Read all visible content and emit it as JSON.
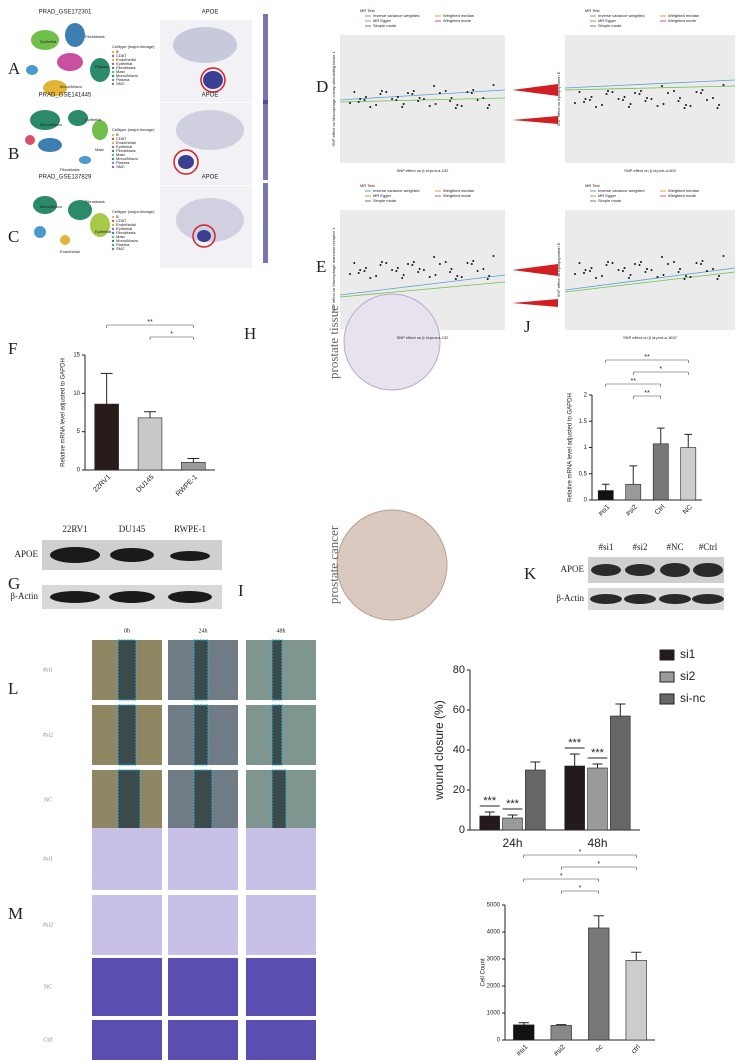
{
  "letters": [
    "A",
    "B",
    "C",
    "D",
    "E",
    "F",
    "G",
    "H",
    "I",
    "J",
    "K",
    "L",
    "M"
  ],
  "umap": {
    "rows": [
      {
        "title": "PRAD_GSE172301",
        "gene": "APOE",
        "clusters": [
          "Epithelial",
          "Fibroblasts",
          "Mono/Macro",
          "Plasma"
        ]
      },
      {
        "title": "PRAD_GSE141445",
        "gene": "APOE",
        "clusters": [
          "Mono/Macro",
          "Epithelial",
          "Fibroblasts",
          "Mast"
        ]
      },
      {
        "title": "PRAD_GSE137829",
        "gene": "APOE",
        "clusters": [
          "Mono/Macro",
          "Fibroblasts",
          "Endothelial",
          "Epithelial"
        ]
      }
    ],
    "legend_title": "Celltype (major-lineage)",
    "legend_items": [
      "B",
      "CD8T",
      "Endothelial",
      "Epithelial",
      "Fibroblasts",
      "Mast",
      "Mono/Macro",
      "Plasma",
      "SMC"
    ]
  },
  "mr": {
    "legend_title": "MR Test",
    "legend_items": [
      "Inverse variance weighted",
      "MR Egger",
      "Simple mode",
      "Weighted median",
      "Weighted mode"
    ],
    "plots": [
      {
        "xlabel": "SNP effect on β id:prot-a-132",
        "ylabel": "SNP effect on Macrophage colony stimulating factor 1"
      },
      {
        "xlabel": "SNP effect on β id:prot-a-500",
        "ylabel": "SNP effect on Apolipoprotein E"
      },
      {
        "xlabel": "SNP effect on β id:prot-a-132",
        "ylabel": "SNP effect on Macrophage mannose receptor 1"
      },
      {
        "xlabel": "SNP effect on β id:prot-a-1637",
        "ylabel": "SNP effect on Apolipoprotein E"
      }
    ]
  },
  "blot_g": {
    "lanes": [
      "22RV1",
      "DU145",
      "RWPE-1"
    ],
    "rows": [
      "APOE",
      "β-Actin"
    ]
  },
  "ihc": [
    "prostate tissue",
    "prostate cancer"
  ],
  "blot_k": {
    "lanes": [
      "#si1",
      "#si2",
      "#NC",
      "#Ctrl"
    ],
    "rows": [
      "APOE",
      "β-Actin"
    ]
  },
  "wound": {
    "columns": [
      "0h",
      "24h",
      "48h"
    ],
    "rows": [
      "#si1",
      "#si2",
      "NC"
    ]
  },
  "transwell": {
    "rows": [
      "#si1",
      "#si2",
      "NC",
      "Ctrl"
    ]
  },
  "chart_data": [
    {
      "type": "bar",
      "ylabel": "Relative mRNA level adjusted to GAPDH",
      "categories": [
        "22RV1",
        "DU145",
        "RWPE-1"
      ],
      "values": [
        8.6,
        6.8,
        1.0
      ],
      "errors": [
        4.0,
        0.8,
        0.5
      ],
      "colors": [
        "#2a1b1b",
        "#c8c8c8",
        "#9a9a9a"
      ],
      "ylim": [
        0,
        15
      ],
      "yticks": [
        0,
        5,
        10,
        15
      ],
      "annotations": [
        "**",
        "*"
      ]
    },
    {
      "type": "bar",
      "ylabel": "Relative mRNA level adjusted to GAPDH",
      "categories": [
        "#si1",
        "#si2",
        "Ctrl",
        "NC"
      ],
      "values": [
        0.18,
        0.3,
        1.07,
        1.0
      ],
      "errors": [
        0.12,
        0.35,
        0.3,
        0.25
      ],
      "colors": [
        "#111111",
        "#999999",
        "#777777",
        "#cccccc"
      ],
      "ylim": [
        0,
        2
      ],
      "yticks": [
        0,
        0.5,
        1,
        1.5,
        2
      ],
      "annotations": [
        "**",
        "*",
        "**",
        "**"
      ]
    },
    {
      "type": "grouped_bar",
      "ylabel": "wound closure (%)",
      "categories": [
        "24h",
        "48h"
      ],
      "series": [
        {
          "name": "si1",
          "color": "#231a1f",
          "values": [
            7,
            32
          ],
          "errors": [
            2,
            6
          ]
        },
        {
          "name": "si2",
          "color": "#9a9a9a",
          "values": [
            6,
            31
          ],
          "errors": [
            1.5,
            2
          ]
        },
        {
          "name": "si-nc",
          "color": "#666666",
          "values": [
            30,
            57
          ],
          "errors": [
            4,
            6
          ]
        }
      ],
      "ylim": [
        0,
        80
      ],
      "yticks": [
        0,
        20,
        40,
        60,
        80
      ],
      "legend": "right",
      "annotations": [
        "***",
        "***",
        "***",
        "***"
      ]
    },
    {
      "type": "bar",
      "ylabel": "Cell Count",
      "categories": [
        "#si1",
        "#si2",
        "nc",
        "ctrl"
      ],
      "values": [
        560,
        540,
        4150,
        2950
      ],
      "errors": [
        80,
        30,
        450,
        300
      ],
      "colors": [
        "#111111",
        "#888888",
        "#777777",
        "#cccccc"
      ],
      "ylim": [
        0,
        5000
      ],
      "yticks": [
        0,
        1000,
        2000,
        3000,
        4000,
        5000
      ],
      "annotations": [
        "*",
        "*",
        "*",
        "*"
      ]
    }
  ]
}
